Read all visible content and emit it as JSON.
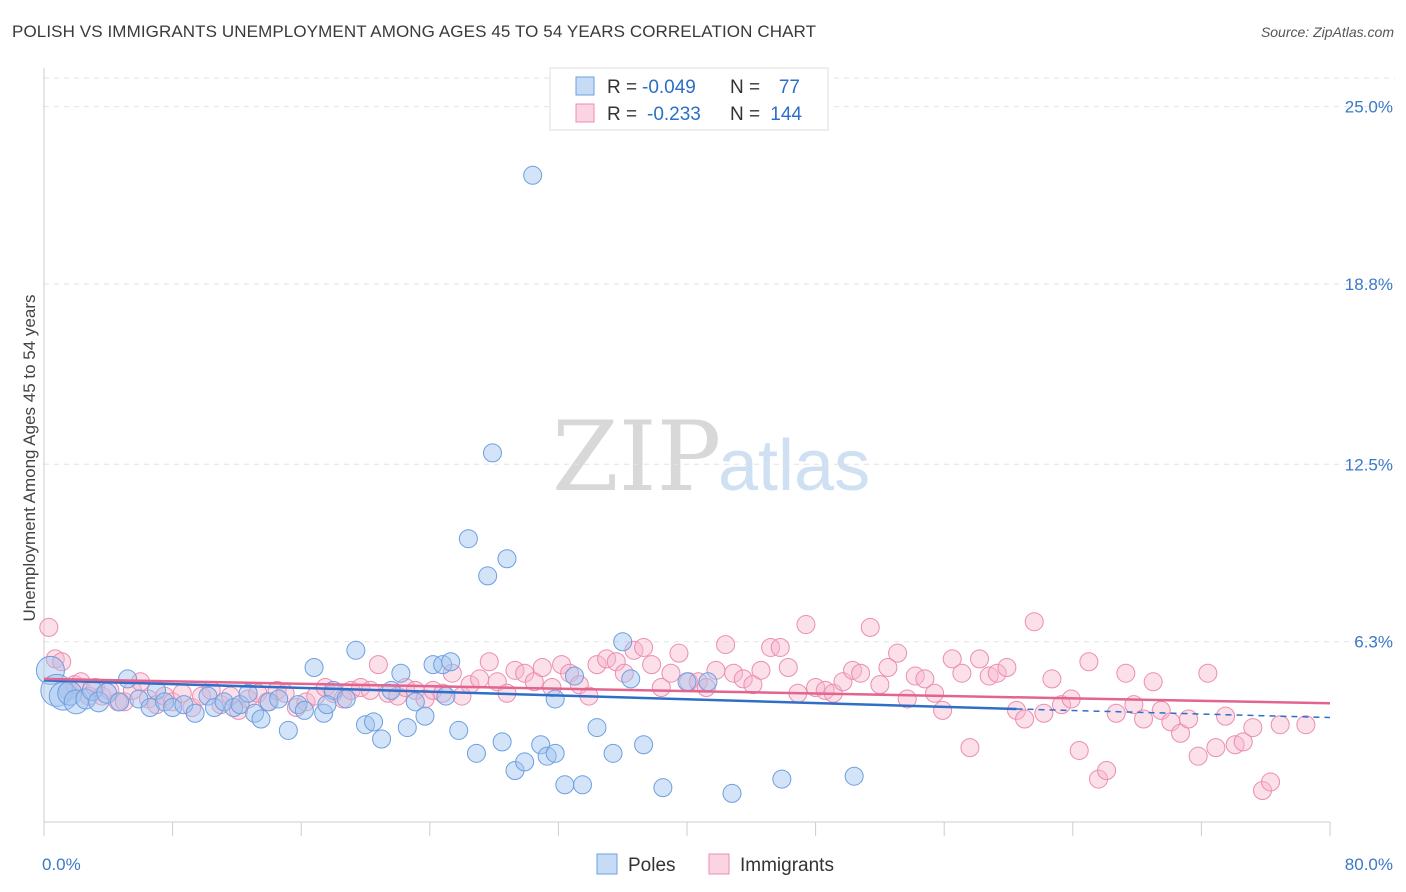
{
  "chart_data": {
    "type": "scatter",
    "title": "POLISH VS IMMIGRANTS UNEMPLOYMENT AMONG AGES 45 TO 54 YEARS CORRELATION CHART",
    "source": "Source: ZipAtlas.com",
    "xlabel": "",
    "ylabel": "Unemployment Among Ages 45 to 54 years",
    "xlim": [
      0,
      80
    ],
    "ylim": [
      0,
      26
    ],
    "x_tick_labels": [
      "0.0%",
      "80.0%"
    ],
    "y_ticks": [
      {
        "value": 6.3,
        "label": "6.3%"
      },
      {
        "value": 12.5,
        "label": "12.5%"
      },
      {
        "value": 18.8,
        "label": "18.8%"
      },
      {
        "value": 25.0,
        "label": "25.0%"
      }
    ],
    "watermark": {
      "part1": "ZIP",
      "part2": "atlas"
    },
    "legend": {
      "r_label": "R =",
      "n_label": "N =",
      "rows": [
        {
          "r": "-0.049",
          "n": "77"
        },
        {
          "r": "-0.233",
          "n": "144"
        }
      ]
    },
    "series": [
      {
        "name": "Poles",
        "color": "#8fb6ea",
        "fill": "rgba(160,196,240,0.45)",
        "stroke": "#6d9fdf",
        "trend_color": "#2f6fc8",
        "trend": {
          "x0": 0,
          "y0": 4.95,
          "x1": 60.5,
          "y1": 3.95
        },
        "trend_dashed": {
          "x0": 60.5,
          "y0": 3.95,
          "x1": 80,
          "y1": 3.65
        },
        "points": [
          [
            0.4,
            5.3
          ],
          [
            0.8,
            4.6
          ],
          [
            1.2,
            4.4
          ],
          [
            1.6,
            4.5
          ],
          [
            2.0,
            4.2
          ],
          [
            2.6,
            4.3
          ],
          [
            3.0,
            4.6
          ],
          [
            3.4,
            4.2
          ],
          [
            3.9,
            4.5
          ],
          [
            4.7,
            4.2
          ],
          [
            5.2,
            5.0
          ],
          [
            5.9,
            4.3
          ],
          [
            6.6,
            4.0
          ],
          [
            7.0,
            4.6
          ],
          [
            7.5,
            4.2
          ],
          [
            8.0,
            4.0
          ],
          [
            8.7,
            4.1
          ],
          [
            9.4,
            3.8
          ],
          [
            10.2,
            4.4
          ],
          [
            10.6,
            4.0
          ],
          [
            11.2,
            4.2
          ],
          [
            11.8,
            4.0
          ],
          [
            12.2,
            4.1
          ],
          [
            12.7,
            4.5
          ],
          [
            13.1,
            3.8
          ],
          [
            13.5,
            3.6
          ],
          [
            14.0,
            4.2
          ],
          [
            14.6,
            4.3
          ],
          [
            15.2,
            3.2
          ],
          [
            15.8,
            4.1
          ],
          [
            16.2,
            3.9
          ],
          [
            16.8,
            5.4
          ],
          [
            17.4,
            3.8
          ],
          [
            18.0,
            4.6
          ],
          [
            18.8,
            4.3
          ],
          [
            19.4,
            6.0
          ],
          [
            20.0,
            3.4
          ],
          [
            20.5,
            3.5
          ],
          [
            21.0,
            2.9
          ],
          [
            21.6,
            4.6
          ],
          [
            22.2,
            5.2
          ],
          [
            22.6,
            3.3
          ],
          [
            23.1,
            4.2
          ],
          [
            23.7,
            3.7
          ],
          [
            24.2,
            5.5
          ],
          [
            24.8,
            5.5
          ],
          [
            25.3,
            5.6
          ],
          [
            25.8,
            3.2
          ],
          [
            26.4,
            9.9
          ],
          [
            26.9,
            2.4
          ],
          [
            27.6,
            8.6
          ],
          [
            27.9,
            12.9
          ],
          [
            28.5,
            2.8
          ],
          [
            28.8,
            9.2
          ],
          [
            29.3,
            1.8
          ],
          [
            29.9,
            2.1
          ],
          [
            30.4,
            22.6
          ],
          [
            30.9,
            2.7
          ],
          [
            31.3,
            2.3
          ],
          [
            31.8,
            2.4
          ],
          [
            32.4,
            1.3
          ],
          [
            33.0,
            5.1
          ],
          [
            33.5,
            1.3
          ],
          [
            34.4,
            3.3
          ],
          [
            35.4,
            2.4
          ],
          [
            36.0,
            6.3
          ],
          [
            36.5,
            5.0
          ],
          [
            37.3,
            2.7
          ],
          [
            38.5,
            1.2
          ],
          [
            40.0,
            4.9
          ],
          [
            41.3,
            4.9
          ],
          [
            42.8,
            1.0
          ],
          [
            45.9,
            1.5
          ],
          [
            50.4,
            1.6
          ],
          [
            31.8,
            4.3
          ],
          [
            25.0,
            4.4
          ],
          [
            17.6,
            4.1
          ]
        ],
        "point_sizes": [
          14,
          16,
          14,
          12,
          12,
          10,
          10,
          10,
          10,
          9,
          9,
          9,
          9,
          9,
          9,
          9,
          9,
          9,
          9,
          9,
          9,
          9,
          9,
          9,
          9,
          9,
          9,
          9,
          9,
          9,
          9,
          9,
          9,
          9,
          9,
          9,
          9,
          9,
          9,
          9,
          9,
          9,
          9,
          9,
          9,
          9,
          9,
          9,
          9,
          9,
          9,
          9,
          9,
          9,
          9,
          9,
          9,
          9,
          9,
          9,
          9,
          9,
          9,
          9,
          9,
          9,
          9,
          9,
          9,
          9,
          9,
          9,
          9,
          9,
          9,
          9,
          9
        ]
      },
      {
        "name": "Immigrants",
        "color": "#f3a9c2",
        "fill": "rgba(247,184,206,0.45)",
        "stroke": "#ec8db0",
        "trend_color": "#e2648f",
        "trend": {
          "x0": 0,
          "y0": 5.0,
          "x1": 80,
          "y1": 4.15
        },
        "points": [
          [
            0.3,
            6.8
          ],
          [
            0.7,
            5.7
          ],
          [
            1.1,
            5.6
          ],
          [
            1.5,
            4.6
          ],
          [
            1.9,
            4.8
          ],
          [
            2.3,
            4.9
          ],
          [
            2.8,
            4.4
          ],
          [
            3.2,
            4.7
          ],
          [
            3.6,
            4.4
          ],
          [
            4.1,
            4.6
          ],
          [
            4.6,
            4.2
          ],
          [
            5.0,
            4.2
          ],
          [
            5.5,
            4.6
          ],
          [
            6.0,
            4.9
          ],
          [
            6.5,
            4.3
          ],
          [
            7.0,
            4.1
          ],
          [
            7.5,
            4.4
          ],
          [
            8.0,
            4.2
          ],
          [
            8.6,
            4.5
          ],
          [
            9.2,
            4.0
          ],
          [
            9.8,
            4.4
          ],
          [
            10.4,
            4.6
          ],
          [
            11.0,
            4.1
          ],
          [
            11.6,
            4.4
          ],
          [
            12.1,
            3.9
          ],
          [
            12.7,
            4.3
          ],
          [
            13.3,
            4.5
          ],
          [
            13.9,
            4.2
          ],
          [
            14.5,
            4.6
          ],
          [
            15.0,
            4.5
          ],
          [
            15.7,
            4.0
          ],
          [
            16.3,
            4.2
          ],
          [
            16.9,
            4.4
          ],
          [
            17.5,
            4.7
          ],
          [
            18.0,
            4.5
          ],
          [
            18.6,
            4.3
          ],
          [
            19.1,
            4.6
          ],
          [
            19.7,
            4.7
          ],
          [
            20.3,
            4.6
          ],
          [
            20.8,
            5.5
          ],
          [
            21.4,
            4.5
          ],
          [
            22.0,
            4.4
          ],
          [
            22.5,
            4.7
          ],
          [
            23.1,
            4.6
          ],
          [
            23.7,
            4.3
          ],
          [
            24.2,
            4.6
          ],
          [
            24.8,
            4.5
          ],
          [
            25.4,
            5.2
          ],
          [
            26.0,
            4.4
          ],
          [
            26.5,
            4.8
          ],
          [
            27.1,
            5.0
          ],
          [
            27.7,
            5.6
          ],
          [
            28.2,
            4.9
          ],
          [
            28.8,
            4.5
          ],
          [
            29.3,
            5.3
          ],
          [
            29.9,
            5.2
          ],
          [
            30.5,
            4.9
          ],
          [
            31.0,
            5.4
          ],
          [
            31.6,
            4.7
          ],
          [
            32.2,
            5.5
          ],
          [
            32.7,
            5.2
          ],
          [
            33.3,
            4.8
          ],
          [
            33.9,
            4.4
          ],
          [
            34.4,
            5.5
          ],
          [
            35.0,
            5.7
          ],
          [
            35.6,
            5.6
          ],
          [
            36.1,
            5.2
          ],
          [
            36.7,
            6.0
          ],
          [
            37.3,
            6.1
          ],
          [
            37.8,
            5.5
          ],
          [
            38.4,
            4.7
          ],
          [
            39.0,
            5.2
          ],
          [
            39.5,
            5.9
          ],
          [
            40.1,
            4.9
          ],
          [
            40.7,
            4.9
          ],
          [
            41.2,
            4.7
          ],
          [
            41.8,
            5.3
          ],
          [
            42.4,
            6.2
          ],
          [
            42.9,
            5.2
          ],
          [
            43.5,
            5.0
          ],
          [
            44.1,
            4.8
          ],
          [
            44.6,
            5.3
          ],
          [
            45.2,
            6.1
          ],
          [
            45.8,
            6.1
          ],
          [
            46.3,
            5.4
          ],
          [
            46.9,
            4.5
          ],
          [
            47.4,
            6.9
          ],
          [
            48.0,
            4.7
          ],
          [
            48.6,
            4.6
          ],
          [
            49.1,
            4.5
          ],
          [
            49.7,
            4.9
          ],
          [
            50.3,
            5.3
          ],
          [
            50.8,
            5.2
          ],
          [
            51.4,
            6.8
          ],
          [
            52.0,
            4.8
          ],
          [
            52.5,
            5.4
          ],
          [
            53.1,
            5.9
          ],
          [
            53.7,
            4.3
          ],
          [
            54.2,
            5.1
          ],
          [
            54.8,
            5.0
          ],
          [
            55.4,
            4.5
          ],
          [
            55.9,
            3.9
          ],
          [
            56.5,
            5.7
          ],
          [
            57.1,
            5.2
          ],
          [
            57.6,
            2.6
          ],
          [
            58.2,
            5.7
          ],
          [
            58.8,
            5.1
          ],
          [
            59.3,
            5.2
          ],
          [
            59.9,
            5.4
          ],
          [
            60.5,
            3.9
          ],
          [
            61.0,
            3.6
          ],
          [
            61.6,
            7.0
          ],
          [
            62.2,
            3.8
          ],
          [
            62.7,
            5.0
          ],
          [
            63.3,
            4.1
          ],
          [
            63.9,
            4.3
          ],
          [
            64.4,
            2.5
          ],
          [
            65.0,
            5.6
          ],
          [
            65.6,
            1.5
          ],
          [
            66.1,
            1.8
          ],
          [
            66.7,
            3.8
          ],
          [
            67.3,
            5.2
          ],
          [
            67.8,
            4.1
          ],
          [
            68.4,
            3.6
          ],
          [
            69.0,
            4.9
          ],
          [
            69.5,
            3.9
          ],
          [
            70.1,
            3.5
          ],
          [
            70.7,
            3.1
          ],
          [
            71.2,
            3.6
          ],
          [
            71.8,
            2.3
          ],
          [
            72.4,
            5.2
          ],
          [
            72.9,
            2.6
          ],
          [
            73.5,
            3.7
          ],
          [
            74.1,
            2.7
          ],
          [
            74.6,
            2.8
          ],
          [
            75.2,
            3.3
          ],
          [
            75.8,
            1.1
          ],
          [
            76.3,
            1.4
          ],
          [
            76.9,
            3.4
          ],
          [
            78.5,
            3.4
          ]
        ]
      }
    ]
  }
}
